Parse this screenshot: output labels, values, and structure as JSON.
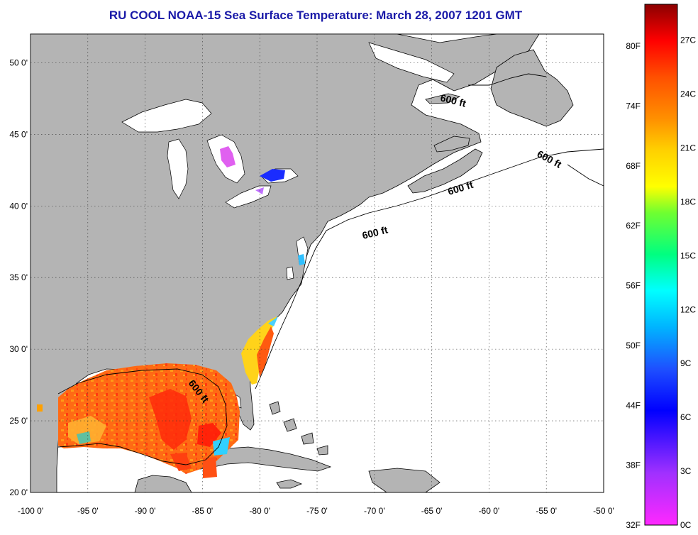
{
  "title": "RU COOL  NOAA-15  Sea Surface Temperature:  March 28, 2007 1201 GMT",
  "map": {
    "lon_range": [
      -100,
      -50
    ],
    "lat_range": [
      20,
      52
    ],
    "lon_ticks": [
      "-100 0'",
      "-95 0'",
      "-90 0'",
      "-85 0'",
      "-80 0'",
      "-75 0'",
      "-70 0'",
      "-65 0'",
      "-60 0'",
      "-55 0'",
      "-50 0'"
    ],
    "lat_ticks": [
      "20 0'",
      "25 0'",
      "30 0'",
      "35 0'",
      "40 0'",
      "45 0'",
      "50 0'"
    ],
    "grid": "dotted",
    "land_color": "#b4b4b4",
    "no_data_color": "#ffffff",
    "isobath_labels": [
      "600 ft",
      "600 ft",
      "600 ft",
      "600 ft",
      "600 ft"
    ]
  },
  "colorbar": {
    "fahrenheit_labels": [
      "32F",
      "38F",
      "44F",
      "50F",
      "56F",
      "62F",
      "68F",
      "74F",
      "80F"
    ],
    "celsius_labels": [
      "0C",
      "3C",
      "6C",
      "9C",
      "12C",
      "15C",
      "18C",
      "21C",
      "24C",
      "27C"
    ],
    "range_c": [
      0,
      29
    ]
  }
}
